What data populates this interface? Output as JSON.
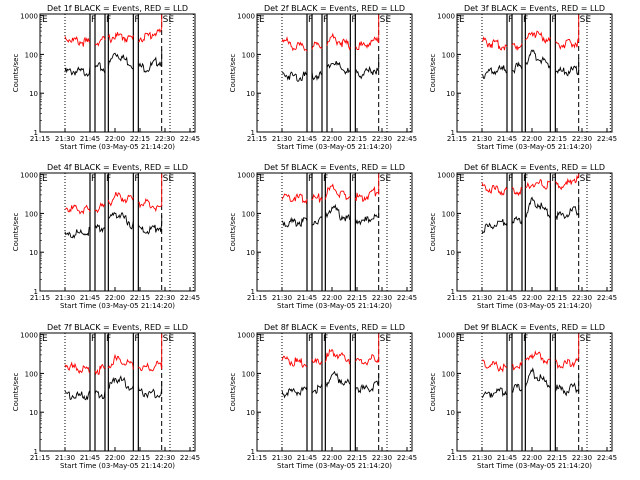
{
  "colors": {
    "events": "#000000",
    "lld": "#ff0000",
    "frame": "#000000"
  },
  "shared": {
    "ylabel": "Counts/sec",
    "xlabel": "Start Time (03-May-05 21:14:20)",
    "x_ticks": [
      "21:15",
      "21:30",
      "21:45",
      "22:00",
      "22:15",
      "22:30",
      "22:45"
    ],
    "y_ticks": [
      "1",
      "10",
      "100",
      "1000"
    ],
    "ylim": [
      1,
      1000
    ],
    "y_scale": "log",
    "markers": {
      "start": "E",
      "f": "F",
      "end": "SE"
    }
  },
  "chart_data": [
    {
      "type": "line",
      "title": "Det 1f BLACK = Events, RED = LLD",
      "x": [
        "21:30",
        "21:35",
        "21:40",
        "21:45",
        "21:50",
        "21:55",
        "22:00",
        "22:05",
        "22:10",
        "22:15",
        "22:20",
        "22:25"
      ],
      "series": [
        {
          "name": "Events",
          "values": [
            40,
            42,
            40,
            43,
            55,
            45,
            130,
            90,
            65,
            55,
            50,
            75
          ]
        },
        {
          "name": "LLD",
          "values": [
            320,
            260,
            240,
            230,
            250,
            270,
            340,
            320,
            290,
            300,
            340,
            430
          ]
        }
      ],
      "vlines": {
        "dotted": [
          "21:30",
          "22:33",
          "22:47"
        ],
        "solid": [
          "21:45",
          "21:48",
          "21:54",
          "21:56",
          "22:11",
          "22:14"
        ],
        "dashed": [
          "22:28"
        ]
      }
    },
    {
      "type": "line",
      "title": "Det 2f BLACK = Events, RED = LLD",
      "x": [
        "21:30",
        "21:35",
        "21:40",
        "21:45",
        "21:50",
        "21:55",
        "22:00",
        "22:05",
        "22:10",
        "22:15",
        "22:20",
        "22:25"
      ],
      "series": [
        {
          "name": "Events",
          "values": [
            35,
            33,
            30,
            32,
            33,
            35,
            80,
            50,
            40,
            35,
            38,
            45
          ]
        },
        {
          "name": "LLD",
          "values": [
            300,
            200,
            180,
            170,
            190,
            200,
            320,
            240,
            200,
            190,
            200,
            260
          ]
        }
      ],
      "vlines": {
        "dotted": [
          "21:30",
          "22:33",
          "22:47"
        ],
        "solid": [
          "21:45",
          "21:48",
          "21:54",
          "21:57",
          "22:11",
          "22:14"
        ],
        "dashed": [
          "22:28"
        ]
      }
    },
    {
      "type": "line",
      "title": "Det 3f BLACK = Events, RED = LLD",
      "x": [
        "21:30",
        "21:35",
        "21:40",
        "21:45",
        "21:50",
        "21:55",
        "22:00",
        "22:05",
        "22:10",
        "22:15",
        "22:20",
        "22:25"
      ],
      "series": [
        {
          "name": "Events",
          "values": [
            35,
            40,
            45,
            48,
            50,
            60,
            120,
            85,
            60,
            45,
            40,
            45
          ]
        },
        {
          "name": "LLD",
          "values": [
            250,
            220,
            200,
            180,
            190,
            220,
            450,
            340,
            260,
            220,
            200,
            230
          ]
        }
      ],
      "vlines": {
        "dotted": [
          "21:30",
          "22:33",
          "22:47"
        ],
        "solid": [
          "21:45",
          "21:48",
          "21:54",
          "21:56",
          "22:11",
          "22:14"
        ],
        "dashed": [
          "22:28"
        ]
      }
    },
    {
      "type": "line",
      "title": "Det 4f BLACK = Events, RED = LLD",
      "x": [
        "21:30",
        "21:35",
        "21:40",
        "21:45",
        "21:50",
        "21:55",
        "22:00",
        "22:05",
        "22:10",
        "22:15",
        "22:20",
        "22:25"
      ],
      "series": [
        {
          "name": "Events",
          "values": [
            30,
            33,
            35,
            40,
            45,
            55,
            120,
            90,
            60,
            45,
            40,
            50
          ]
        },
        {
          "name": "LLD",
          "values": [
            160,
            150,
            140,
            140,
            150,
            180,
            320,
            280,
            250,
            220,
            200,
            170
          ]
        }
      ],
      "vlines": {
        "dotted": [
          "21:30",
          "22:33",
          "22:47"
        ],
        "solid": [
          "21:45",
          "21:48",
          "21:54",
          "21:56",
          "22:11",
          "22:14"
        ],
        "dashed": [
          "22:28"
        ]
      }
    },
    {
      "type": "line",
      "title": "Det 5f BLACK = Events, RED = LLD",
      "x": [
        "21:30",
        "21:35",
        "21:40",
        "21:45",
        "21:50",
        "21:55",
        "22:00",
        "22:05",
        "22:10",
        "22:15",
        "22:20",
        "22:25"
      ],
      "series": [
        {
          "name": "Events",
          "values": [
            65,
            68,
            70,
            70,
            72,
            75,
            180,
            100,
            80,
            75,
            72,
            90
          ]
        },
        {
          "name": "LLD",
          "values": [
            320,
            300,
            290,
            280,
            280,
            300,
            560,
            360,
            310,
            300,
            310,
            420
          ]
        }
      ],
      "vlines": {
        "dotted": [
          "21:30",
          "22:33",
          "22:47"
        ],
        "solid": [
          "21:45",
          "21:48",
          "21:54",
          "21:56",
          "22:11",
          "22:14"
        ],
        "dashed": [
          "22:28"
        ]
      }
    },
    {
      "type": "line",
      "title": "Det 6f BLACK = Events, RED = LLD",
      "x": [
        "21:30",
        "21:35",
        "21:40",
        "21:45",
        "21:50",
        "21:55",
        "22:00",
        "22:05",
        "22:10",
        "22:15",
        "22:20",
        "22:25"
      ],
      "series": [
        {
          "name": "Events",
          "values": [
            45,
            55,
            60,
            70,
            75,
            80,
            250,
            180,
            110,
            100,
            100,
            130
          ]
        },
        {
          "name": "LLD",
          "values": [
            550,
            480,
            450,
            420,
            430,
            450,
            700,
            650,
            620,
            600,
            580,
            900
          ]
        }
      ],
      "vlines": {
        "dotted": [
          "21:30",
          "22:33",
          "22:47"
        ],
        "solid": [
          "21:45",
          "21:48",
          "21:54",
          "21:56",
          "22:11",
          "22:14"
        ],
        "dashed": [
          "22:28"
        ]
      }
    },
    {
      "type": "line",
      "title": "Det 7f BLACK = Events, RED = LLD",
      "x": [
        "21:30",
        "21:35",
        "21:40",
        "21:45",
        "21:50",
        "21:55",
        "22:00",
        "22:05",
        "22:10",
        "22:15",
        "22:20",
        "22:25"
      ],
      "series": [
        {
          "name": "Events",
          "values": [
            33,
            31,
            30,
            30,
            32,
            35,
            90,
            70,
            50,
            40,
            35,
            35
          ]
        },
        {
          "name": "LLD",
          "values": [
            200,
            160,
            140,
            130,
            140,
            160,
            260,
            220,
            190,
            170,
            160,
            180
          ]
        }
      ],
      "vlines": {
        "dotted": [
          "21:30",
          "22:33",
          "22:47"
        ],
        "solid": [
          "21:45",
          "21:48",
          "21:54",
          "21:56",
          "22:11",
          "22:14"
        ],
        "dashed": [
          "22:28"
        ]
      }
    },
    {
      "type": "line",
      "title": "Det 8f BLACK = Events, RED = LLD",
      "x": [
        "21:30",
        "21:35",
        "21:40",
        "21:45",
        "21:50",
        "21:55",
        "22:00",
        "22:05",
        "22:10",
        "22:15",
        "22:20",
        "22:25"
      ],
      "series": [
        {
          "name": "Events",
          "values": [
            35,
            38,
            40,
            42,
            45,
            50,
            110,
            80,
            60,
            50,
            45,
            55
          ]
        },
        {
          "name": "LLD",
          "values": [
            300,
            240,
            220,
            200,
            210,
            240,
            420,
            320,
            270,
            240,
            230,
            280
          ]
        }
      ],
      "vlines": {
        "dotted": [
          "21:30",
          "22:33",
          "22:47"
        ],
        "solid": [
          "21:45",
          "21:48",
          "21:54",
          "21:56",
          "22:11",
          "22:14"
        ],
        "dashed": [
          "22:28"
        ]
      }
    },
    {
      "type": "line",
      "title": "Det 9f BLACK = Events, RED = LLD",
      "x": [
        "21:30",
        "21:35",
        "21:40",
        "21:45",
        "21:50",
        "21:55",
        "22:00",
        "22:05",
        "22:10",
        "22:15",
        "22:20",
        "22:25"
      ],
      "series": [
        {
          "name": "Events",
          "values": [
            32,
            36,
            38,
            42,
            45,
            55,
            120,
            85,
            60,
            45,
            40,
            50
          ]
        },
        {
          "name": "LLD",
          "values": [
            220,
            190,
            170,
            160,
            170,
            200,
            380,
            300,
            240,
            200,
            190,
            230
          ]
        }
      ],
      "vlines": {
        "dotted": [
          "21:30",
          "22:33",
          "22:47"
        ],
        "solid": [
          "21:45",
          "21:48",
          "21:54",
          "21:56",
          "22:11",
          "22:14"
        ],
        "dashed": [
          "22:28"
        ]
      }
    }
  ]
}
